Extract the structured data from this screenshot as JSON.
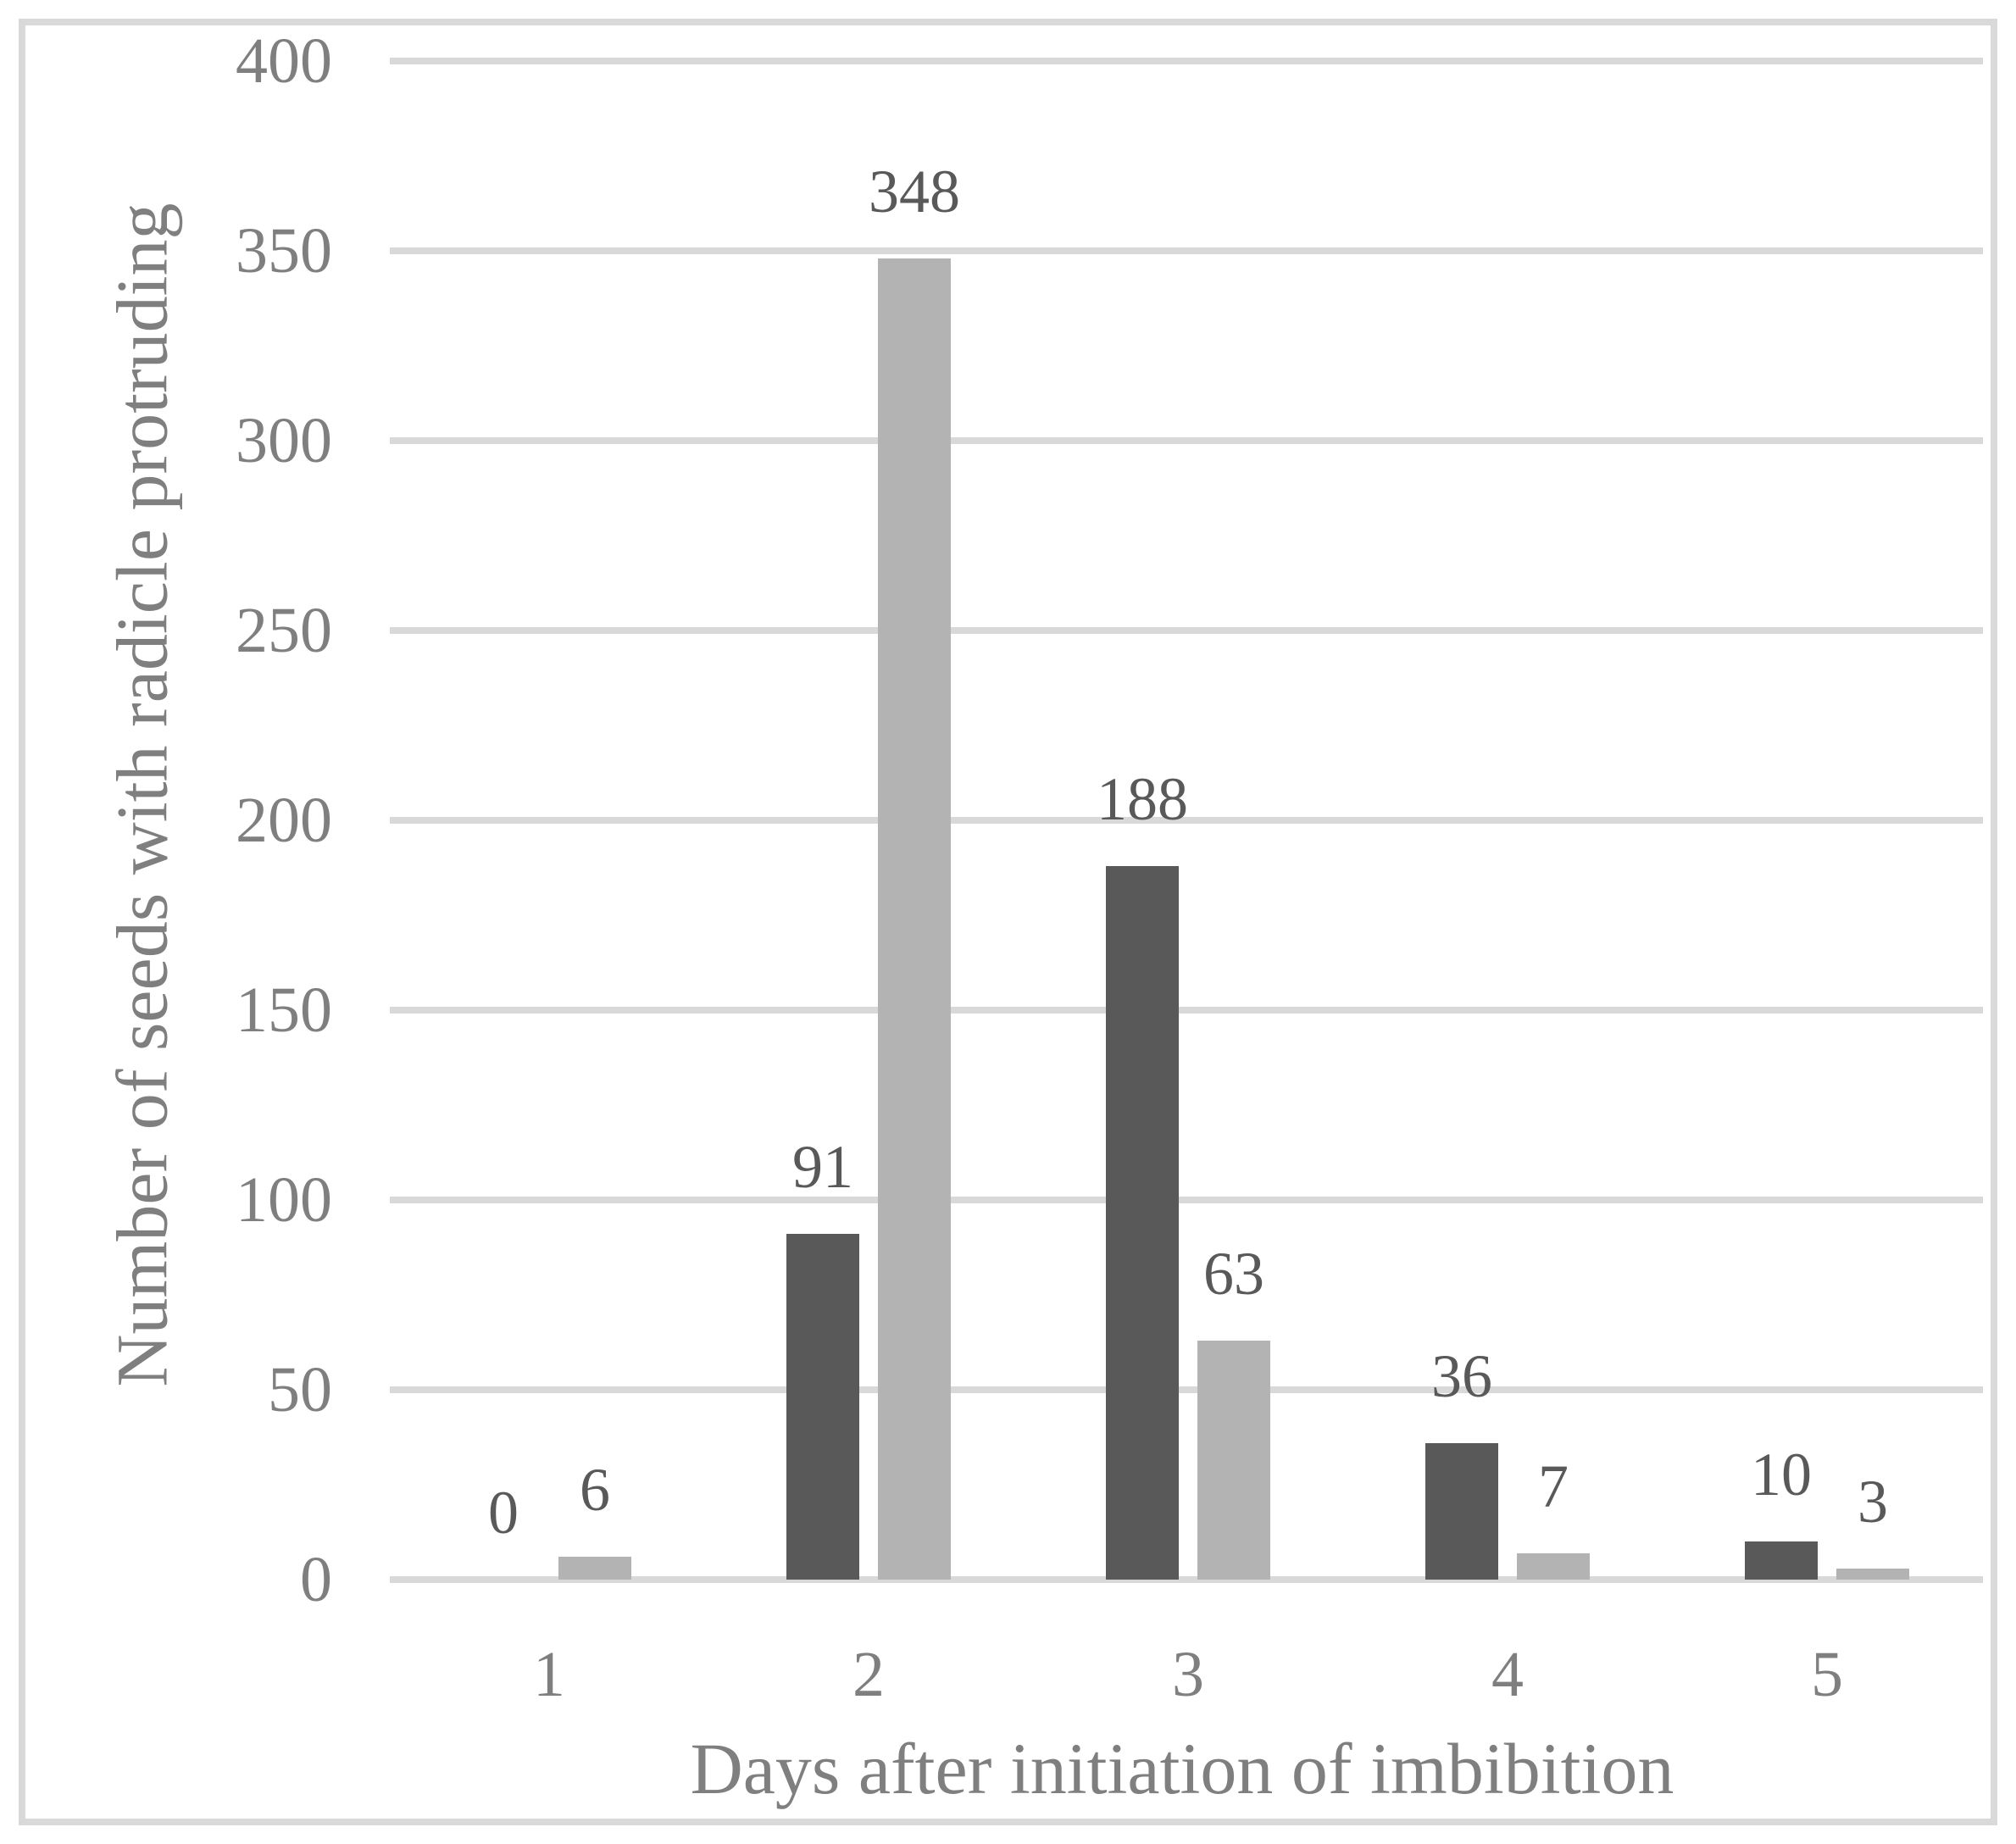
{
  "chart_data": {
    "type": "bar",
    "categories": [
      "1",
      "2",
      "3",
      "4",
      "5"
    ],
    "series": [
      {
        "name": "dark-gray-series",
        "color": "#595959",
        "values": [
          0,
          91,
          188,
          36,
          10
        ]
      },
      {
        "name": "light-gray-series",
        "color": "#b3b3b3",
        "values": [
          6,
          348,
          63,
          7,
          3
        ]
      }
    ],
    "title": "",
    "xlabel": "Days after initiation of imbibition",
    "ylabel": "Number of seeds with radicle protruding",
    "ylim": [
      0,
      400
    ],
    "ytick_interval": 50,
    "yticks": [
      "0",
      "50",
      "100",
      "150",
      "200",
      "250",
      "300",
      "350",
      "400"
    ],
    "grid": true,
    "legend_position": "none",
    "data_labels_visible": true,
    "colors": {
      "gridline": "#d9d9d9",
      "border": "#d9d9d9",
      "axis_text": "#7f7f7f",
      "data_label_text": "#595959",
      "background": "#ffffff"
    }
  }
}
